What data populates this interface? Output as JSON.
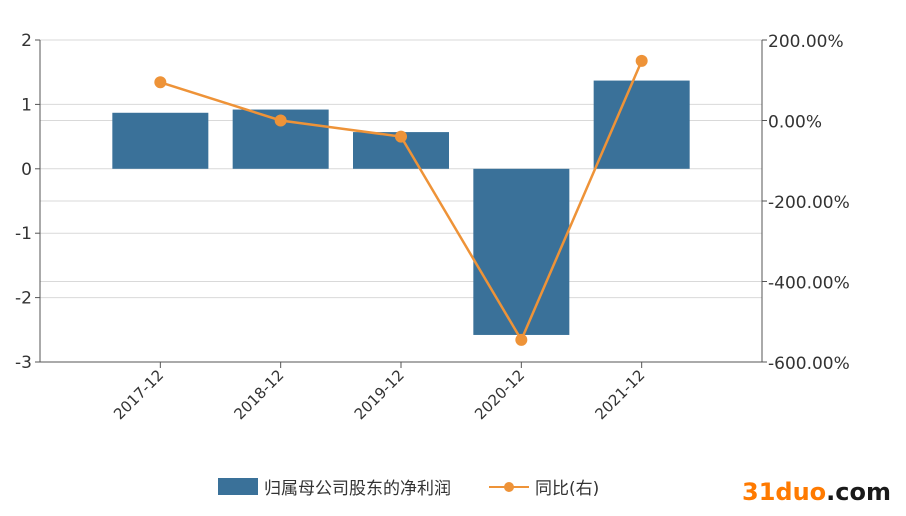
{
  "chart_data": {
    "type": "bar",
    "categories": [
      "2017-12",
      "2018-12",
      "2019-12",
      "2020-12",
      "2021-12"
    ],
    "series": [
      {
        "name": "归属母公司股东的净利润",
        "type": "bar",
        "axis": "left",
        "color": "#3a7199",
        "values": [
          0.87,
          0.92,
          0.57,
          -2.58,
          1.37
        ]
      },
      {
        "name": "同比(右)",
        "type": "line",
        "axis": "right",
        "color": "#ee9338",
        "values": [
          95,
          0,
          -40,
          -545,
          148
        ]
      }
    ],
    "y_left": {
      "ylim": [
        -3,
        2
      ],
      "ticks": [
        "-3",
        "-2",
        "-1",
        "0",
        "1",
        "2"
      ],
      "tick_values": [
        -3,
        -2,
        -1,
        0,
        1,
        2
      ]
    },
    "y_right": {
      "ylim": [
        -600,
        200
      ],
      "ticks": [
        "-600.00%",
        "-400.00%",
        "-200.00%",
        "0.00%",
        "200.00%"
      ],
      "tick_values": [
        -600,
        -400,
        -200,
        0,
        200
      ]
    },
    "grid": true,
    "legend_position": "bottom"
  },
  "watermark": {
    "part1": "31duo",
    "part2": ".com"
  }
}
